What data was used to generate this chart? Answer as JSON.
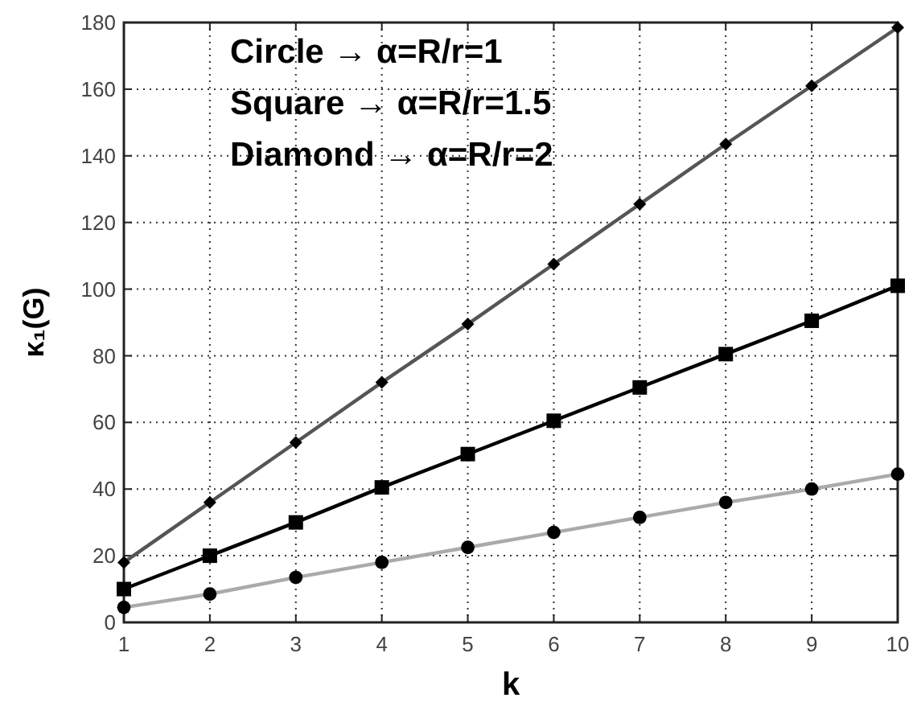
{
  "chart_data": {
    "type": "line",
    "xlabel": "k",
    "ylabel": "κ₁(G)",
    "x": [
      1,
      2,
      3,
      4,
      5,
      6,
      7,
      8,
      9,
      10
    ],
    "series": [
      {
        "color": "#555555",
        "marker": "diamond",
        "values": [
          18,
          36,
          54,
          72,
          89.5,
          107.5,
          125.5,
          143.5,
          161,
          178.5
        ]
      },
      {
        "color": "#000000",
        "marker": "square",
        "values": [
          10,
          20,
          30,
          40.5,
          50.5,
          60.5,
          70.5,
          80.5,
          90.5,
          101
        ]
      },
      {
        "color": "#aaaaaa",
        "marker": "circle",
        "values": [
          4.5,
          8.5,
          13.5,
          18,
          22.5,
          27,
          31.5,
          36,
          40,
          44.5
        ]
      }
    ],
    "xlim": [
      1,
      10
    ],
    "xticks": [
      1,
      2,
      3,
      4,
      5,
      6,
      7,
      8,
      9,
      10
    ],
    "ylim": [
      0,
      180
    ],
    "yticks": [
      0,
      20,
      40,
      60,
      80,
      100,
      120,
      140,
      160,
      180
    ],
    "grid": true,
    "line_style": "solid",
    "annotations": [
      "Circle → α=R/r=1",
      "Square → α=R/r=1.5",
      "Diamond → α=R/r=2"
    ]
  }
}
